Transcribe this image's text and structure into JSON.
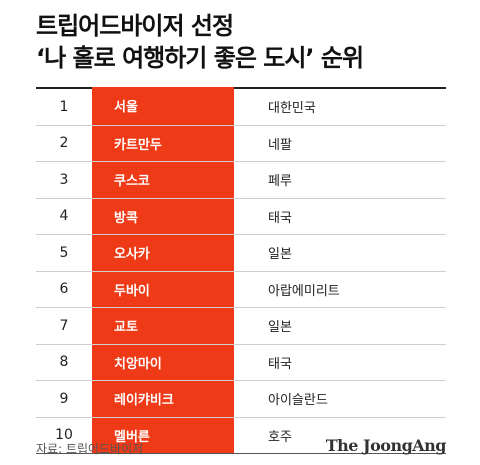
{
  "title": {
    "line1": "트립어드바이저 선정",
    "line2": "‘나 홀로 여행하기 좋은 도시’ 순위"
  },
  "rows": [
    {
      "rank": "1",
      "city": "서울",
      "country": "대한민국"
    },
    {
      "rank": "2",
      "city": "카트만두",
      "country": "네팔"
    },
    {
      "rank": "3",
      "city": "쿠스코",
      "country": "페루"
    },
    {
      "rank": "4",
      "city": "방콕",
      "country": "태국"
    },
    {
      "rank": "5",
      "city": "오사카",
      "country": "일본"
    },
    {
      "rank": "6",
      "city": "두바이",
      "country": "아랍에미리트"
    },
    {
      "rank": "7",
      "city": "교토",
      "country": "일본"
    },
    {
      "rank": "8",
      "city": "치앙마이",
      "country": "태국"
    },
    {
      "rank": "9",
      "city": "레이캬비크",
      "country": "아이슬란드"
    },
    {
      "rank": "10",
      "city": "멜버른",
      "country": "호주"
    }
  ],
  "footer": {
    "source": "자료: 트립어드바이저",
    "logo": "The JoongAng"
  },
  "colors": {
    "highlight": "#ee3a17"
  }
}
